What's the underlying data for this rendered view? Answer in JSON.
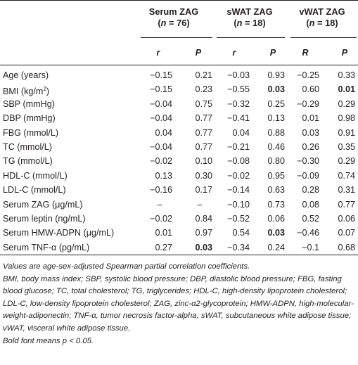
{
  "header": {
    "groups": [
      {
        "line1": "Serum ZAG",
        "line2_pre": "(",
        "line2_n": "n",
        "line2_post": " = 76)"
      },
      {
        "line1": "sWAT ZAG",
        "line2_pre": "(",
        "line2_n": "n",
        "line2_post": " = 18)"
      },
      {
        "line1": "vWAT ZAG",
        "line2_pre": "(",
        "line2_n": "n",
        "line2_post": " = 18)"
      }
    ],
    "subheaders": [
      "r",
      "P",
      "r",
      "P",
      "R",
      "P"
    ]
  },
  "rows": [
    {
      "label": "Age (years)",
      "values": [
        "−0.15",
        "0.21",
        "−0.03",
        "0.93",
        "−0.25",
        "0.33"
      ],
      "bold": [
        false,
        false,
        false,
        false,
        false,
        false
      ]
    },
    {
      "label_pre": "BMI (kg/m",
      "label_sup": "2",
      "label_post": ")",
      "values": [
        "−0.15",
        "0.23",
        "−0.55",
        "0.03",
        "0.60",
        "0.01"
      ],
      "bold": [
        false,
        false,
        false,
        true,
        false,
        true
      ]
    },
    {
      "label": "SBP (mmHg)",
      "values": [
        "−0.04",
        "0.75",
        "−0.32",
        "0.25",
        "−0.29",
        "0.29"
      ],
      "bold": [
        false,
        false,
        false,
        false,
        false,
        false
      ]
    },
    {
      "label": "DBP (mmHg)",
      "values": [
        "−0.04",
        "0.77",
        "−0.41",
        "0.13",
        "0.01",
        "0.98"
      ],
      "bold": [
        false,
        false,
        false,
        false,
        false,
        false
      ]
    },
    {
      "label": "FBG (mmol/L)",
      "values": [
        "0.04",
        "0.77",
        "0.04",
        "0.88",
        "0.03",
        "0.91"
      ],
      "bold": [
        false,
        false,
        false,
        false,
        false,
        false
      ]
    },
    {
      "label": "TC (mmol/L)",
      "values": [
        "−0.04",
        "0.77",
        "−0.21",
        "0.46",
        "0.26",
        "0.35"
      ],
      "bold": [
        false,
        false,
        false,
        false,
        false,
        false
      ]
    },
    {
      "label": "TG (mmol/L)",
      "values": [
        "−0.02",
        "0.10",
        "−0.08",
        "0.80",
        "−0.30",
        "0.29"
      ],
      "bold": [
        false,
        false,
        false,
        false,
        false,
        false
      ]
    },
    {
      "label": "HDL-C (mmol/L)",
      "values": [
        "0.13",
        "0.30",
        "−0.02",
        "0.95",
        "−0.09",
        "0.74"
      ],
      "bold": [
        false,
        false,
        false,
        false,
        false,
        false
      ]
    },
    {
      "label": "LDL-C (mmol/L)",
      "values": [
        "−0.16",
        "0.17",
        "−0.14",
        "0.63",
        "0.28",
        "0.31"
      ],
      "bold": [
        false,
        false,
        false,
        false,
        false,
        false
      ]
    },
    {
      "label": "Serum ZAG (μg/mL)",
      "values": [
        "–",
        "–",
        "−0.10",
        "0.73",
        "0.08",
        "0.77"
      ],
      "bold": [
        false,
        false,
        false,
        false,
        false,
        false
      ]
    },
    {
      "label": "Serum leptin (ng/mL)",
      "values": [
        "−0.02",
        "0.84",
        "−0.52",
        "0.06",
        "0.52",
        "0.06"
      ],
      "bold": [
        false,
        false,
        false,
        false,
        false,
        false
      ]
    },
    {
      "label": "Serum HMW-ADPN (μg/mL)",
      "values": [
        "0.01",
        "0.97",
        "0.54",
        "0.03",
        "−0.46",
        "0.07"
      ],
      "bold": [
        false,
        false,
        false,
        true,
        false,
        false
      ]
    },
    {
      "label": "Serum TNF-α (pg/mL)",
      "values": [
        "0.27",
        "0.03",
        "−0.34",
        "0.24",
        "−0.1",
        "0.68"
      ],
      "bold": [
        false,
        true,
        false,
        false,
        false,
        false
      ]
    }
  ],
  "notes": {
    "line1": "Values are age-sex-adjusted Spearman partial correlation coefficients.",
    "line2": "BMI, body mass index; SBP, systolic blood pressure; DBP, diastolic blood pressure; FBG, fasting blood glucose; TC, total cholesterol; TG, triglycerides; HDL-C, high-density lipoprotein cholesterol; LDL-C, low-density lipoprotein cholesterol; ZAG, zinc-α2-glycoprotein; HMW-ADPN, high-molecular-weight-adiponectin; TNF-α, tumor necrosis factor-alpha; sWAT, subcutaneous white adipose tissue; vWAT, visceral white adipose tissue.",
    "line3": "Bold font means p < 0.05."
  }
}
